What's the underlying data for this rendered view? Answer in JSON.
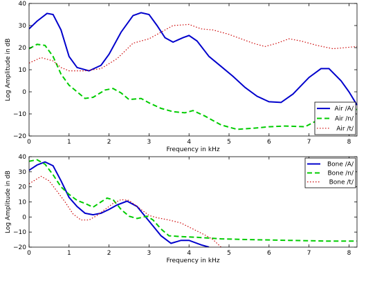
{
  "chart_data": [
    {
      "type": "line",
      "xlabel": "Frequency in kHz",
      "ylabel": "Log Amplitude in dB",
      "xlim": [
        0,
        8.2
      ],
      "ylim": [
        -20,
        40
      ],
      "xticks": [
        0,
        1,
        2,
        3,
        4,
        5,
        6,
        7,
        8
      ],
      "xtick_labels": [
        "0",
        "1",
        "2",
        "3",
        "4",
        "5",
        "6",
        "7",
        "8"
      ],
      "yticks": [
        -20,
        -10,
        0,
        10,
        20,
        30,
        40
      ],
      "ytick_labels": [
        "−20",
        "−10",
        "0",
        "10",
        "20",
        "30",
        "40"
      ],
      "grid": false,
      "legend_position": "bottom-right",
      "series": [
        {
          "name": "Air /A/",
          "color": "#0000cc",
          "style": "solid",
          "points": [
            [
              0,
              28.5
            ],
            [
              0.2,
              32
            ],
            [
              0.45,
              35.5
            ],
            [
              0.6,
              35
            ],
            [
              0.8,
              28
            ],
            [
              1.0,
              16
            ],
            [
              1.2,
              11
            ],
            [
              1.5,
              9.5
            ],
            [
              1.8,
              12
            ],
            [
              2.0,
              17
            ],
            [
              2.3,
              27
            ],
            [
              2.6,
              34.5
            ],
            [
              2.8,
              35.8
            ],
            [
              3.0,
              35
            ],
            [
              3.2,
              30
            ],
            [
              3.4,
              24.5
            ],
            [
              3.6,
              22.5
            ],
            [
              3.85,
              24.5
            ],
            [
              4.0,
              25.5
            ],
            [
              4.2,
              23
            ],
            [
              4.5,
              16
            ],
            [
              4.8,
              11.5
            ],
            [
              5.1,
              7
            ],
            [
              5.4,
              2
            ],
            [
              5.7,
              -2
            ],
            [
              6.0,
              -4.5
            ],
            [
              6.3,
              -4.8
            ],
            [
              6.6,
              -1
            ],
            [
              7.0,
              6.5
            ],
            [
              7.3,
              10.5
            ],
            [
              7.5,
              10.5
            ],
            [
              7.8,
              5
            ],
            [
              8.0,
              0
            ],
            [
              8.2,
              -6
            ]
          ]
        },
        {
          "name": "Air /n/",
          "color": "#00cc00",
          "style": "dashed",
          "points": [
            [
              0,
              19.5
            ],
            [
              0.2,
              21.5
            ],
            [
              0.4,
              21
            ],
            [
              0.6,
              16
            ],
            [
              0.8,
              8
            ],
            [
              1.0,
              3
            ],
            [
              1.2,
              0
            ],
            [
              1.4,
              -3
            ],
            [
              1.6,
              -2.5
            ],
            [
              1.9,
              0.8
            ],
            [
              2.1,
              1.5
            ],
            [
              2.3,
              -0.5
            ],
            [
              2.5,
              -3.5
            ],
            [
              2.8,
              -3
            ],
            [
              3.0,
              -5
            ],
            [
              3.3,
              -7.5
            ],
            [
              3.6,
              -9
            ],
            [
              3.9,
              -9.5
            ],
            [
              4.1,
              -8.5
            ],
            [
              4.4,
              -11
            ],
            [
              4.8,
              -15
            ],
            [
              5.2,
              -17
            ],
            [
              5.6,
              -16.5
            ],
            [
              6.0,
              -15.8
            ],
            [
              6.4,
              -15.5
            ],
            [
              6.9,
              -15.8
            ],
            [
              7.2,
              -13
            ],
            [
              7.5,
              -10
            ],
            [
              7.8,
              -8.5
            ],
            [
              8.2,
              -8
            ]
          ]
        },
        {
          "name": "Air /t/",
          "color": "#cc0000",
          "style": "dotted",
          "points": [
            [
              0,
              13
            ],
            [
              0.3,
              15.5
            ],
            [
              0.6,
              14
            ],
            [
              0.8,
              11
            ],
            [
              1.0,
              9.5
            ],
            [
              1.4,
              9.5
            ],
            [
              1.8,
              10.5
            ],
            [
              2.2,
              15
            ],
            [
              2.6,
              22
            ],
            [
              3.0,
              24
            ],
            [
              3.3,
              27
            ],
            [
              3.6,
              30
            ],
            [
              4.0,
              30.5
            ],
            [
              4.3,
              28.5
            ],
            [
              4.6,
              28
            ],
            [
              5.0,
              26
            ],
            [
              5.3,
              24
            ],
            [
              5.6,
              22
            ],
            [
              5.9,
              20.5
            ],
            [
              6.2,
              22
            ],
            [
              6.5,
              24
            ],
            [
              6.8,
              23
            ],
            [
              7.2,
              21
            ],
            [
              7.6,
              19.5
            ],
            [
              8.2,
              20.5
            ]
          ]
        }
      ]
    },
    {
      "type": "line",
      "xlabel": "Frequency in kHz",
      "ylabel": "Log Amplitude in dB",
      "xlim": [
        0,
        8.2
      ],
      "ylim": [
        -20,
        40
      ],
      "xticks": [
        0,
        1,
        2,
        3,
        4,
        5,
        6,
        7,
        8
      ],
      "xtick_labels": [
        "0",
        "1",
        "2",
        "3",
        "4",
        "5",
        "6",
        "7",
        "8"
      ],
      "yticks": [
        -20,
        -10,
        0,
        10,
        20,
        30,
        40
      ],
      "ytick_labels": [
        "−20",
        "−10",
        "0",
        "10",
        "20",
        "30",
        "40"
      ],
      "grid": false,
      "legend_position": "top-right",
      "series": [
        {
          "name": "Bone /A/",
          "color": "#0000cc",
          "style": "solid",
          "points": [
            [
              0,
              31
            ],
            [
              0.2,
              34.5
            ],
            [
              0.4,
              36.5
            ],
            [
              0.6,
              34
            ],
            [
              0.8,
              24
            ],
            [
              1.0,
              13
            ],
            [
              1.2,
              7
            ],
            [
              1.4,
              2.5
            ],
            [
              1.6,
              1.5
            ],
            [
              1.8,
              2.5
            ],
            [
              2.0,
              5
            ],
            [
              2.2,
              8
            ],
            [
              2.45,
              10.5
            ],
            [
              2.7,
              7
            ],
            [
              2.9,
              0.5
            ],
            [
              3.1,
              -6
            ],
            [
              3.3,
              -12.5
            ],
            [
              3.55,
              -17.5
            ],
            [
              3.8,
              -15.5
            ],
            [
              4.0,
              -15.5
            ],
            [
              4.3,
              -18.5
            ],
            [
              4.5,
              -20
            ]
          ]
        },
        {
          "name": "Bone /n/",
          "color": "#00cc00",
          "style": "dashed",
          "points": [
            [
              0,
              37
            ],
            [
              0.2,
              38
            ],
            [
              0.4,
              35
            ],
            [
              0.6,
              28
            ],
            [
              0.8,
              20
            ],
            [
              1.0,
              15
            ],
            [
              1.2,
              11
            ],
            [
              1.4,
              9
            ],
            [
              1.6,
              6.5
            ],
            [
              1.8,
              10
            ],
            [
              1.95,
              12.5
            ],
            [
              2.1,
              11.5
            ],
            [
              2.3,
              5
            ],
            [
              2.5,
              0.5
            ],
            [
              2.7,
              -1
            ],
            [
              2.95,
              0.5
            ],
            [
              3.1,
              -2
            ],
            [
              3.3,
              -8
            ],
            [
              3.5,
              -12.5
            ],
            [
              3.8,
              -13
            ],
            [
              4.2,
              -13.5
            ],
            [
              4.8,
              -14.5
            ],
            [
              5.5,
              -15
            ],
            [
              6.5,
              -15.5
            ],
            [
              7.5,
              -16
            ],
            [
              8.2,
              -16
            ]
          ]
        },
        {
          "name": "Bone /t/",
          "color": "#cc0000",
          "style": "dotted",
          "points": [
            [
              0,
              22
            ],
            [
              0.3,
              27
            ],
            [
              0.5,
              24
            ],
            [
              0.7,
              17
            ],
            [
              0.9,
              10
            ],
            [
              1.1,
              2
            ],
            [
              1.3,
              -2
            ],
            [
              1.5,
              -2
            ],
            [
              1.7,
              1
            ],
            [
              1.9,
              5
            ],
            [
              2.1,
              9
            ],
            [
              2.3,
              11.5
            ],
            [
              2.5,
              11
            ],
            [
              2.8,
              5
            ],
            [
              3.0,
              1
            ],
            [
              3.2,
              -0.5
            ],
            [
              3.5,
              -2
            ],
            [
              3.8,
              -4
            ],
            [
              4.1,
              -8
            ],
            [
              4.4,
              -12
            ],
            [
              4.6,
              -15
            ],
            [
              4.8,
              -20
            ]
          ]
        }
      ]
    }
  ]
}
